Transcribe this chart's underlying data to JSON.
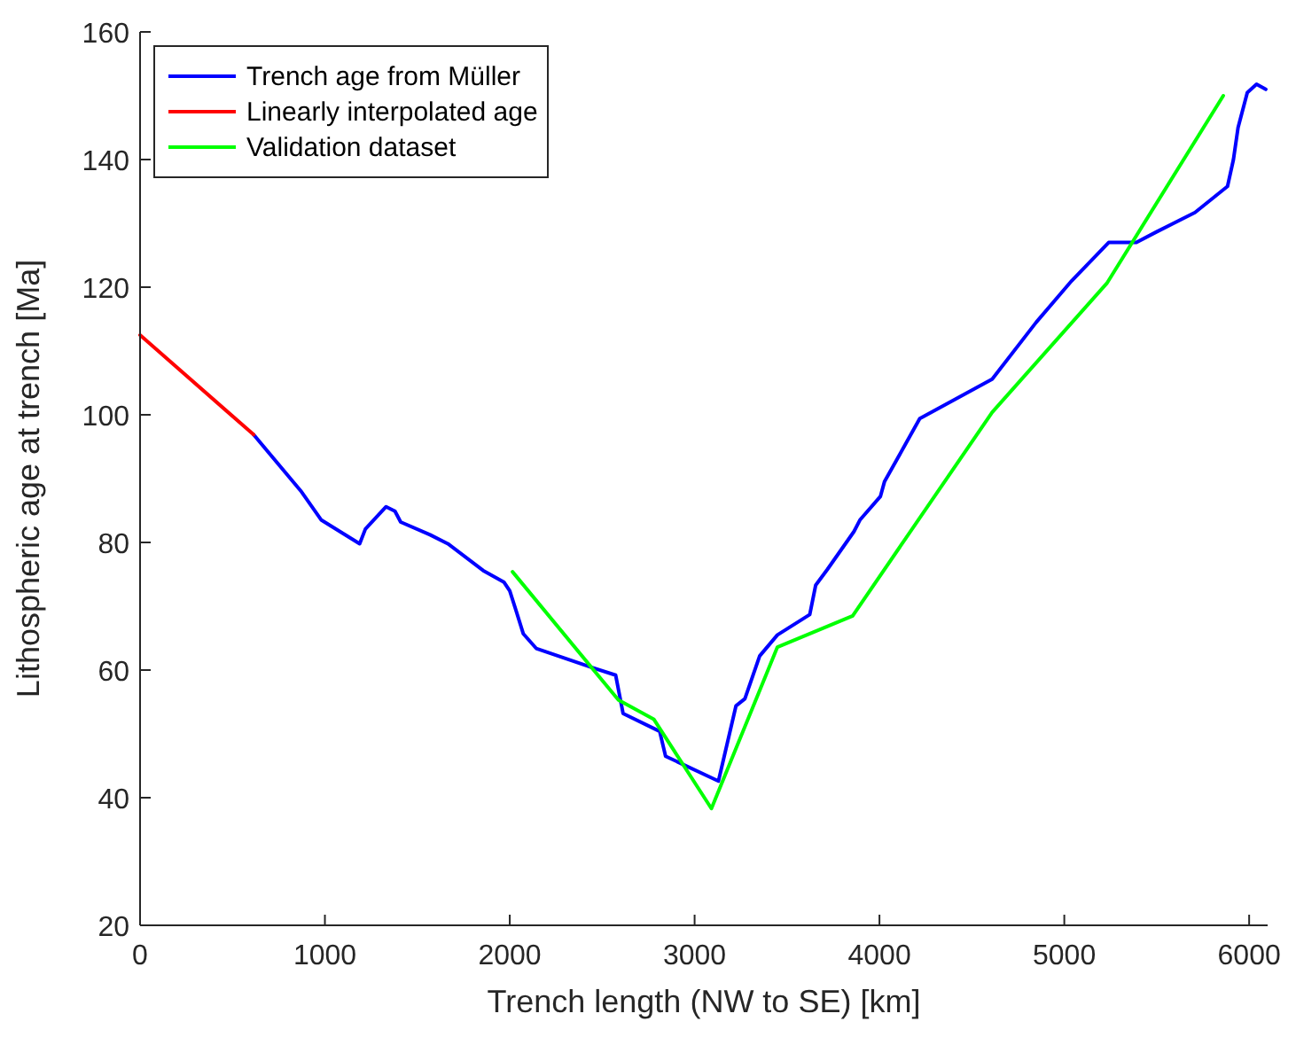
{
  "chart_data": {
    "type": "line",
    "xlabel": "Trench length (NW to SE) [km]",
    "ylabel": "Lithospheric age at trench [Ma]",
    "xlim": [
      0,
      6100
    ],
    "xticks": [
      0,
      1000,
      2000,
      3000,
      4000,
      5000,
      6000
    ],
    "ylim": [
      20,
      160
    ],
    "yticks": [
      20,
      40,
      60,
      80,
      100,
      120,
      140,
      160
    ],
    "grid": false,
    "legend": "top left",
    "line_style": "solid",
    "marker": "none",
    "series": [
      {
        "name": "Trench age from Müller",
        "color": "#0000ff",
        "x": [
          614,
          869,
          981,
          1188,
          1219,
          1331,
          1379,
          1410,
          1569,
          1665,
          1856,
          1968,
          2000,
          2031,
          2073,
          2143,
          2445,
          2573,
          2613,
          2811,
          2843,
          3129,
          3224,
          3272,
          3352,
          3448,
          3623,
          3655,
          3719,
          3862,
          3894,
          4005,
          4027,
          4218,
          4610,
          4848,
          5040,
          5240,
          5390,
          5501,
          5707,
          5883,
          5915,
          5940,
          5990,
          6040,
          6090
        ],
        "values": [
          96.9,
          88.1,
          83.5,
          79.8,
          82.1,
          85.6,
          84.9,
          83.2,
          81.2,
          79.8,
          75.6,
          73.8,
          72.4,
          69.6,
          65.7,
          63.4,
          60.4,
          59.2,
          53.2,
          50.4,
          46.5,
          42.6,
          54.4,
          55.5,
          62.2,
          65.5,
          68.7,
          73.3,
          75.8,
          81.7,
          83.5,
          87.2,
          89.5,
          99.4,
          105.6,
          114.5,
          121,
          127,
          127,
          128.7,
          131.7,
          135.8,
          140,
          145,
          150.5,
          151.8,
          151
        ]
      },
      {
        "name": "Linearly interpolated age",
        "color": "#ff0000",
        "x": [
          0,
          614
        ],
        "values": [
          112.5,
          96.9
        ]
      },
      {
        "name": "Validation dataset",
        "color": "#00ff00",
        "x": [
          2015,
          2588,
          2779,
          3091,
          3448,
          3855,
          4610,
          5230,
          5860
        ],
        "values": [
          75.4,
          55.3,
          52.3,
          38.3,
          63.6,
          68.5,
          100.4,
          120.6,
          150
        ]
      }
    ]
  }
}
